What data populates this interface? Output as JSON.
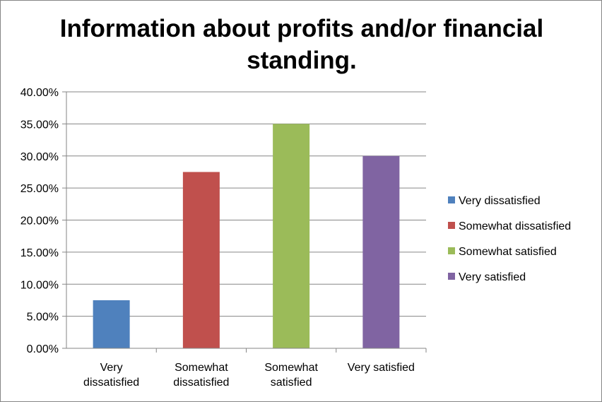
{
  "chart_data": {
    "type": "bar",
    "title_lines": [
      "Information about profits and/or financial",
      "standing."
    ],
    "xlabel": "",
    "ylabel": "",
    "categories": [
      [
        "Very",
        "dissatisfied"
      ],
      [
        "Somewhat",
        "dissatisfied"
      ],
      [
        "Somewhat",
        "satisfied"
      ],
      [
        "Very satisfied"
      ]
    ],
    "values": [
      7.5,
      27.5,
      35.0,
      30.0
    ],
    "colors": [
      "#4f81bd",
      "#c0504d",
      "#9bbb59",
      "#8064a2"
    ],
    "yticks": [
      "0.00%",
      "5.00%",
      "10.00%",
      "15.00%",
      "20.00%",
      "25.00%",
      "30.00%",
      "35.00%",
      "40.00%"
    ],
    "ylim": [
      0,
      40
    ],
    "grid": true,
    "legend_position": "right",
    "legend": [
      "Very dissatisfied",
      "Somewhat dissatisfied",
      "Somewhat satisfied",
      "Very satisfied"
    ]
  }
}
